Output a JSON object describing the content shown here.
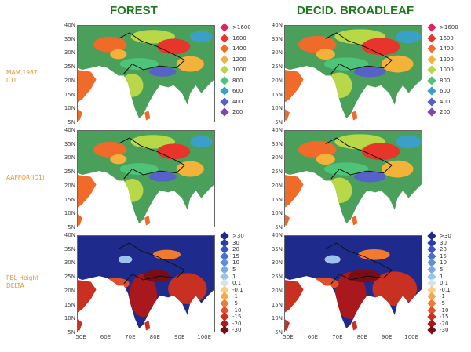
{
  "titles": {
    "forest": "FOREST",
    "decid": "DECID. BROADLEAF"
  },
  "row_labels": {
    "ctl": "MAM,1987\nCTL",
    "aaffor": "AAFFOR(ID1)",
    "pbl": "PBL Height\nDELTA"
  },
  "axes": {
    "lat_ticks": [
      "40N",
      "35N",
      "30N",
      "25N",
      "20N",
      "15N",
      "10N",
      "5N"
    ],
    "lon_ticks": [
      "50E",
      "60E",
      "70E",
      "80E",
      "90E",
      "100E"
    ]
  },
  "legend_height": {
    "labels": [
      ">1600",
      "1600",
      "1400",
      "1200",
      "1000",
      "800",
      "600",
      "400",
      "200"
    ],
    "colors": [
      "#e0245e",
      "#e8352c",
      "#f06a2a",
      "#f4b23a",
      "#b8d848",
      "#4cc47a",
      "#3aa0c8",
      "#5662c8",
      "#7a4ab0"
    ]
  },
  "legend_delta": {
    "labels": [
      ">30",
      "30",
      "20",
      "15",
      "10",
      "5",
      "1",
      "0.1",
      "-0.1",
      "-1",
      "-5",
      "-10",
      "-15",
      "-20",
      "-30"
    ],
    "colors": [
      "#1e2a8c",
      "#2b3ca6",
      "#3a55c0",
      "#4a72cc",
      "#5e8fd6",
      "#7aaae0",
      "#9cc4ea",
      "#d0e4f4",
      "#f8d080",
      "#f6a84a",
      "#f07a30",
      "#e0502a",
      "#c83022",
      "#a8181c",
      "#7a0c14"
    ]
  },
  "maps": [
    {
      "id": "ctl-forest",
      "palette": "height",
      "bg": "#4aa05a"
    },
    {
      "id": "ctl-decid",
      "palette": "height",
      "bg": "#4aa05a"
    },
    {
      "id": "aaffor-forest",
      "palette": "height",
      "bg": "#4aa05a"
    },
    {
      "id": "aaffor-decid",
      "palette": "height",
      "bg": "#4aa05a"
    },
    {
      "id": "pbl-forest",
      "palette": "delta",
      "bg": "#1e2a8c"
    },
    {
      "id": "pbl-decid",
      "palette": "delta",
      "bg": "#1e2a8c"
    }
  ]
}
